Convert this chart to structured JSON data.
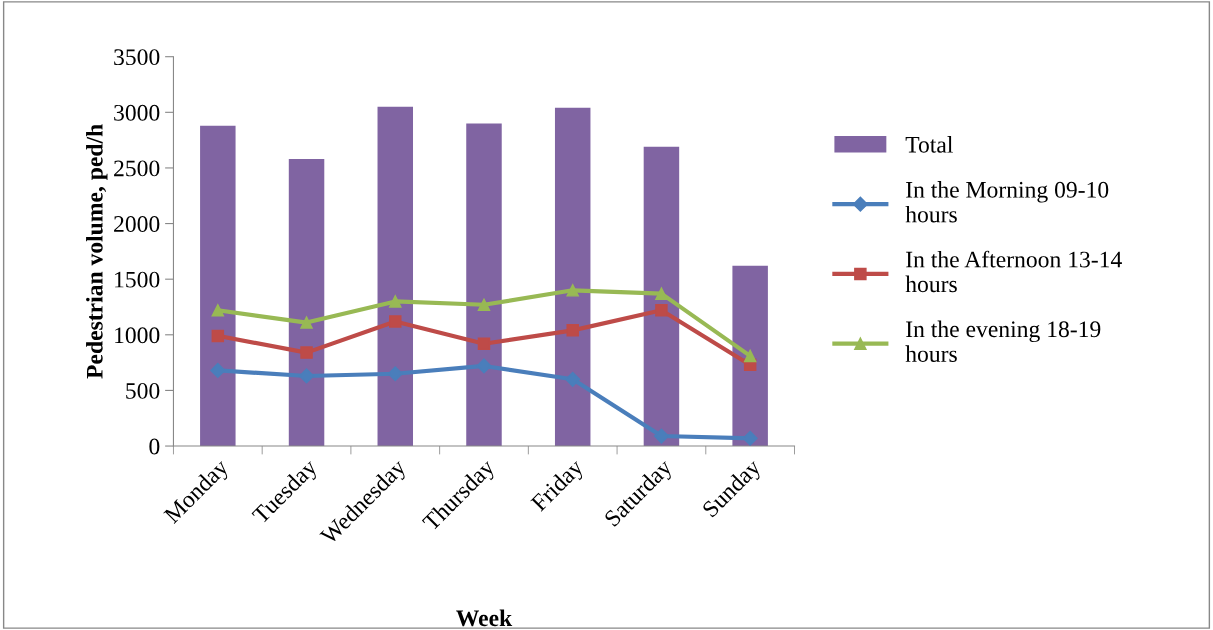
{
  "chart_data": {
    "type": "bar",
    "xlabel": "Week",
    "ylabel": "Pedestrian volume, ped/h",
    "categories": [
      "Monday",
      "Tuesday",
      "Wednesday",
      "Thursday",
      "Friday",
      "Saturday",
      "Sunday"
    ],
    "series": [
      {
        "name": "Total",
        "color": "#8064a2",
        "values": [
          2880,
          2580,
          3050,
          2900,
          3040,
          2690,
          1620
        ]
      },
      {
        "name": "In the Morning 09-10 hours",
        "type": "line",
        "marker": "diamond",
        "color": "#4a7ebb",
        "values": [
          680,
          630,
          650,
          720,
          600,
          90,
          70
        ]
      },
      {
        "name": "In the Afternoon 13-14 hours",
        "type": "line",
        "marker": "square",
        "color": "#be4b48",
        "values": [
          990,
          840,
          1120,
          920,
          1040,
          1220,
          730
        ]
      },
      {
        "name": "In the evening 18-19 hours",
        "type": "line",
        "marker": "triangle",
        "color": "#98b954",
        "values": [
          1220,
          1110,
          1300,
          1270,
          1400,
          1370,
          810
        ]
      }
    ],
    "ylim": [
      0,
      3500
    ],
    "yticks": [
      0,
      500,
      1000,
      1500,
      2000,
      2500,
      3000,
      3500
    ],
    "grid": false,
    "legend": "right",
    "line_style": "solid"
  }
}
